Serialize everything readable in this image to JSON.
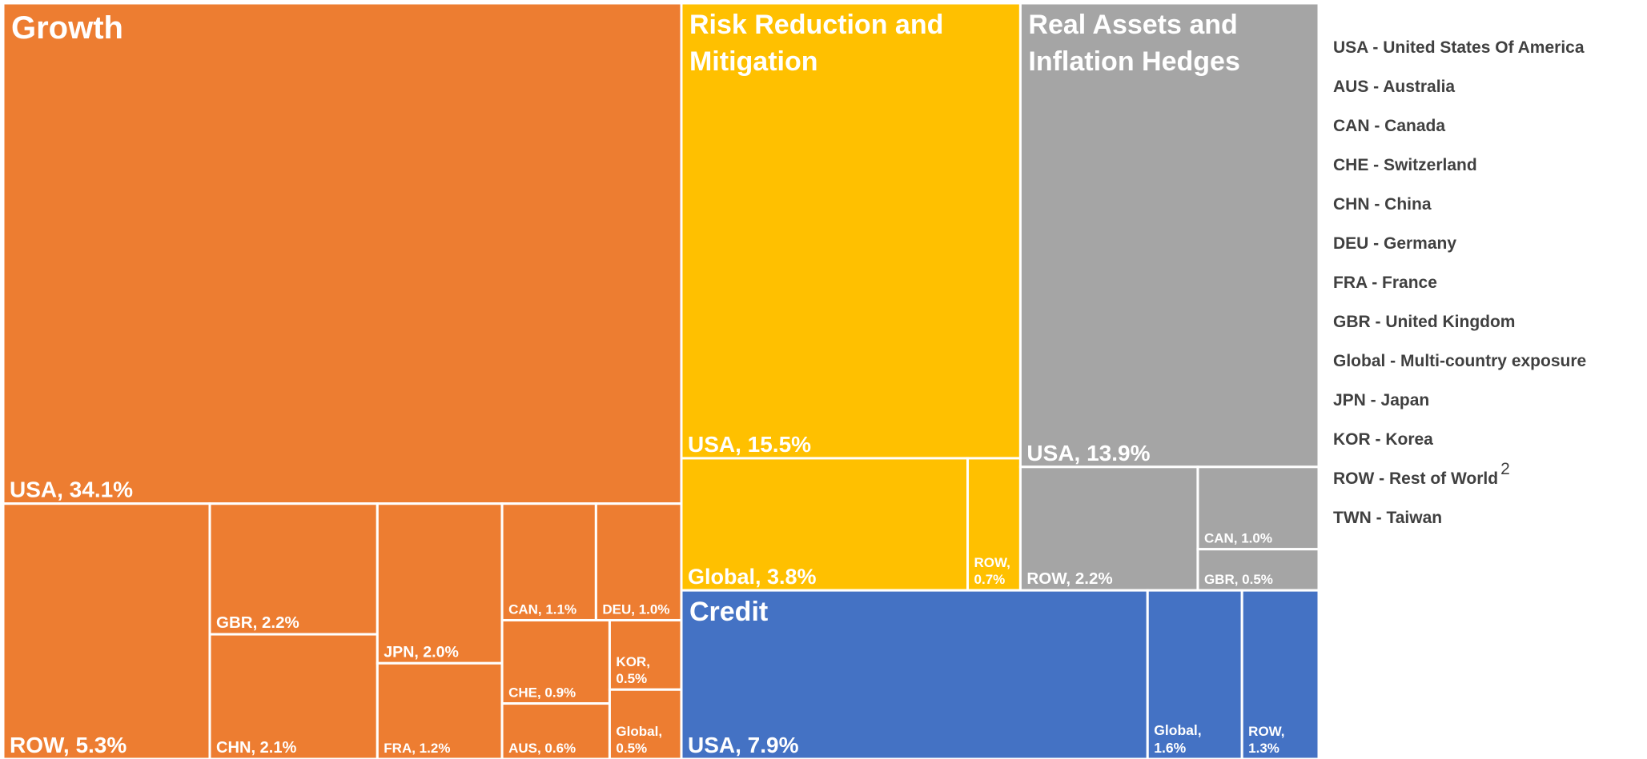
{
  "chart_data": {
    "type": "treemap",
    "groups": [
      {
        "name": "Growth",
        "color": "#ed7d31",
        "values": [
          34.1,
          5.3,
          2.2,
          2.1,
          2.0,
          1.2,
          1.1,
          1.0,
          0.9,
          0.6,
          0.5,
          0.5
        ],
        "value_labels": [
          "USA, 34.1%",
          "ROW, 5.3%",
          "GBR, 2.2%",
          "CHN, 2.1%",
          "JPN, 2.0%",
          "FRA, 1.2%",
          "CAN, 1.1%",
          "DEU, 1.0%",
          "CHE, 0.9%",
          "AUS, 0.6%",
          "KOR, 0.5%",
          "Global, 0.5%"
        ]
      },
      {
        "name": "Risk Reduction and Mitigation",
        "color": "#ffc000",
        "values": [
          15.5,
          3.8,
          0.7
        ],
        "value_labels": [
          "USA, 15.5%",
          "Global, 3.8%",
          "ROW, 0.7%"
        ]
      },
      {
        "name": "Real Assets and Inflation Hedges",
        "color": "#a5a5a5",
        "values": [
          13.9,
          2.2,
          1.0,
          0.5
        ],
        "value_labels": [
          "USA, 13.9%",
          "ROW, 2.2%",
          "CAN, 1.0%",
          "GBR, 0.5%"
        ]
      },
      {
        "name": "Credit",
        "color": "#4472c4",
        "values": [
          7.9,
          1.6,
          1.3
        ],
        "value_labels": [
          "USA, 7.9%",
          "Global, 1.6%",
          "ROW, 1.3%"
        ]
      }
    ],
    "legend": [
      {
        "text": "USA - United States Of America"
      },
      {
        "text": "AUS - Australia"
      },
      {
        "text": "CAN - Canada"
      },
      {
        "text": "CHE - Switzerland"
      },
      {
        "text": "CHN - China"
      },
      {
        "text": "DEU - Germany"
      },
      {
        "text": "FRA - France"
      },
      {
        "text": "GBR - United Kingdom"
      },
      {
        "text": "Global - Multi-country exposure"
      },
      {
        "text": "JPN - Japan"
      },
      {
        "text": "KOR - Korea"
      },
      {
        "text": "ROW - Rest of World",
        "note": "2"
      },
      {
        "text": "TWN - Taiwan"
      }
    ]
  }
}
